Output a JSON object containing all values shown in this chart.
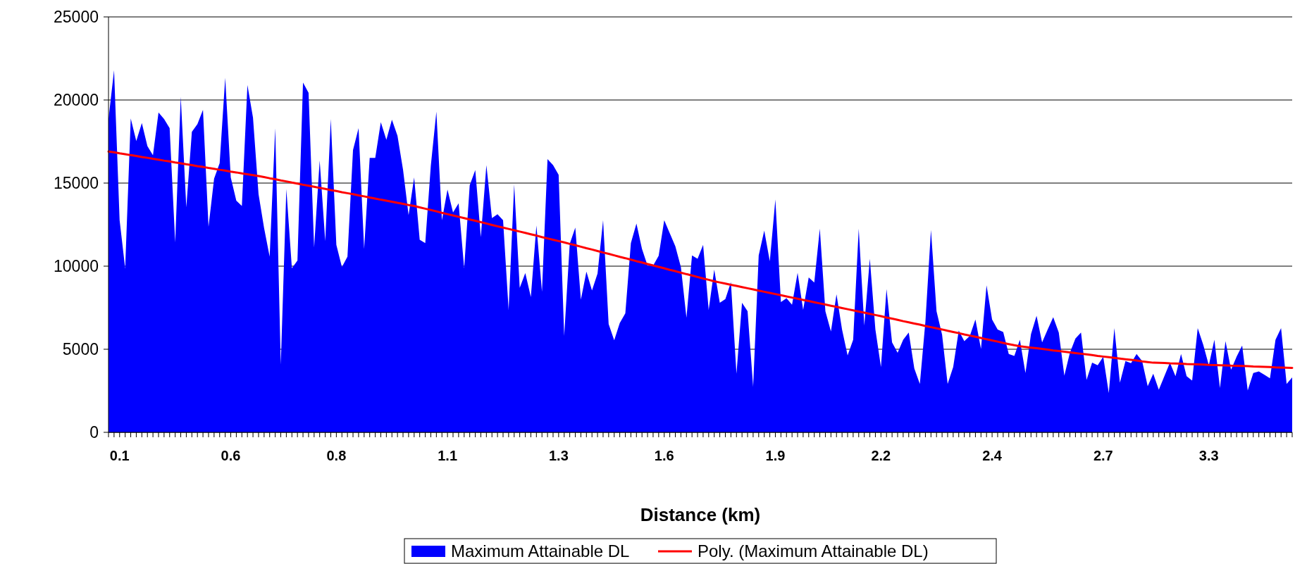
{
  "chart_data": {
    "type": "area",
    "xlabel": "Distance (km)",
    "categories": [
      null,
      null,
      "0.1",
      null,
      null,
      null,
      null,
      null,
      null,
      null,
      null,
      null,
      null,
      null,
      null,
      null,
      null,
      null,
      null,
      null,
      null,
      null,
      "0.6",
      null,
      null,
      null,
      null,
      null,
      null,
      null,
      null,
      null,
      null,
      null,
      null,
      null,
      null,
      null,
      null,
      null,
      null,
      "0.8",
      null,
      null,
      null,
      null,
      null,
      null,
      null,
      null,
      null,
      null,
      null,
      null,
      null,
      null,
      null,
      null,
      null,
      null,
      null,
      "1.1",
      null,
      null,
      null,
      null,
      null,
      null,
      null,
      null,
      null,
      null,
      null,
      null,
      null,
      null,
      null,
      null,
      null,
      null,
      null,
      "1.3",
      null,
      null,
      null,
      null,
      null,
      null,
      null,
      null,
      null,
      null,
      null,
      null,
      null,
      null,
      null,
      null,
      null,
      null,
      "1.6",
      null,
      null,
      null,
      null,
      null,
      null,
      null,
      null,
      null,
      null,
      null,
      null,
      null,
      null,
      null,
      null,
      null,
      null,
      null,
      "1.9",
      null,
      null,
      null,
      null,
      null,
      null,
      null,
      null,
      null,
      null,
      null,
      null,
      null,
      null,
      null,
      null,
      null,
      null,
      "2.2",
      null,
      null,
      null,
      null,
      null,
      null,
      null,
      null,
      null,
      null,
      null,
      null,
      null,
      null,
      null,
      null,
      null,
      null,
      null,
      "2.4",
      null,
      null,
      null,
      null,
      null,
      null,
      null,
      null,
      null,
      null,
      null,
      null,
      null,
      null,
      null,
      null,
      null,
      null,
      null,
      "2.7",
      null,
      null,
      null,
      null,
      null,
      null,
      null,
      null,
      null,
      null,
      null,
      null,
      null,
      null,
      null,
      null,
      null,
      null,
      "3.3",
      null,
      null,
      null,
      null,
      null,
      null,
      null,
      null,
      null,
      null,
      null,
      null,
      null,
      null,
      null
    ],
    "series": [
      {
        "name": "Maximum Attainable DL",
        "color": "#0000ff",
        "values": [
          18860,
          21790,
          12760,
          9870,
          18890,
          17530,
          18610,
          17220,
          16670,
          19250,
          18860,
          18310,
          11430,
          20190,
          13540,
          18080,
          18550,
          19410,
          12370,
          15260,
          16200,
          21330,
          15340,
          13940,
          13620,
          20900,
          18940,
          14330,
          12290,
          10570,
          18310,
          4080,
          14640,
          9870,
          10340,
          21050,
          20430,
          11120,
          16360,
          11510,
          18860,
          11280,
          9950,
          10570,
          16990,
          18310,
          11040,
          16510,
          16510,
          18670,
          17610,
          18810,
          17850,
          15810,
          13070,
          15340,
          11590,
          11390,
          16050,
          19300,
          12760,
          14610,
          13230,
          13780,
          9870,
          14870,
          15780,
          11750,
          16080,
          12890,
          13120,
          12760,
          7370,
          14920,
          8700,
          9590,
          8150,
          12450,
          8460,
          16440,
          16080,
          15500,
          5800,
          11350,
          12320,
          7990,
          9670,
          8540,
          9560,
          12760,
          6510,
          5540,
          6580,
          7160,
          11390,
          12560,
          11040,
          10030,
          10030,
          10620,
          12760,
          11980,
          11200,
          9950,
          6900,
          10650,
          10450,
          11280,
          7370,
          9790,
          7800,
          8020,
          9040,
          3530,
          7800,
          7290,
          2750,
          10650,
          12140,
          10300,
          14010,
          7840,
          8070,
          7680,
          9600,
          7370,
          9320,
          9010,
          12260,
          7290,
          6070,
          8300,
          6190,
          4630,
          5570,
          12260,
          6430,
          10450,
          6190,
          3930,
          8620,
          5410,
          4790,
          5570,
          6010,
          3850,
          2910,
          6660,
          12180,
          7290,
          5880,
          2910,
          3930,
          6120,
          5490,
          5800,
          6790,
          5020,
          8850,
          6790,
          6190,
          6040,
          4710,
          4600,
          5570,
          3570,
          5910,
          7010,
          5410,
          6190,
          6930,
          6010,
          3410,
          4790,
          5650,
          6010,
          3160,
          4190,
          4040,
          4550,
          2360,
          6270,
          2990,
          4290,
          4160,
          4710,
          4290,
          2780,
          3530,
          2560,
          3380,
          4190,
          3380,
          4710,
          3380,
          3110,
          6270,
          5260,
          4040,
          5570,
          2670,
          5490,
          3770,
          4550,
          5220,
          2520,
          3570,
          3660,
          3460,
          3250,
          5570,
          6270,
          2910,
          3300
        ]
      },
      {
        "name": "Poly. (Maximum Attainable DL)",
        "type": "line",
        "color": "#ff0000",
        "values": [
          16900,
          16850,
          16790,
          16740,
          16680,
          16630,
          16570,
          16520,
          16460,
          16410,
          16350,
          16300,
          16240,
          16190,
          16130,
          16080,
          16020,
          15970,
          15910,
          15860,
          15800,
          15750,
          15690,
          15640,
          15580,
          15530,
          15480,
          15420,
          15360,
          15290,
          15230,
          15160,
          15100,
          15030,
          14970,
          14900,
          14840,
          14780,
          14710,
          14650,
          14580,
          14520,
          14450,
          14390,
          14330,
          14260,
          14200,
          14130,
          14070,
          14000,
          13940,
          13880,
          13810,
          13750,
          13680,
          13620,
          13540,
          13460,
          13380,
          13300,
          13210,
          13130,
          13050,
          12970,
          12890,
          12810,
          12730,
          12650,
          12570,
          12480,
          12400,
          12320,
          12240,
          12160,
          12080,
          12000,
          11920,
          11840,
          11750,
          11670,
          11590,
          11510,
          11430,
          11340,
          11260,
          11170,
          11080,
          11000,
          10910,
          10820,
          10740,
          10650,
          10560,
          10480,
          10390,
          10300,
          10220,
          10130,
          10040,
          9960,
          9870,
          9780,
          9700,
          9610,
          9520,
          9440,
          9350,
          9260,
          9180,
          9090,
          9020,
          8950,
          8880,
          8810,
          8740,
          8670,
          8600,
          8530,
          8460,
          8390,
          8320,
          8250,
          8180,
          8110,
          8040,
          7970,
          7900,
          7830,
          7760,
          7690,
          7620,
          7550,
          7480,
          7410,
          7340,
          7270,
          7200,
          7130,
          7060,
          6990,
          6910,
          6840,
          6770,
          6690,
          6620,
          6550,
          6480,
          6400,
          6330,
          6260,
          6190,
          6110,
          6040,
          5970,
          5890,
          5820,
          5750,
          5680,
          5600,
          5530,
          5460,
          5380,
          5310,
          5240,
          5180,
          5140,
          5100,
          5060,
          5020,
          4980,
          4930,
          4890,
          4850,
          4810,
          4770,
          4730,
          4690,
          4650,
          4600,
          4560,
          4520,
          4480,
          4440,
          4400,
          4360,
          4320,
          4270,
          4230,
          4190,
          4180,
          4170,
          4150,
          4140,
          4130,
          4110,
          4100,
          4090,
          4080,
          4060,
          4050,
          4040,
          4030,
          4010,
          4000,
          3990,
          3980,
          3960,
          3950,
          3940,
          3930,
          3910,
          3900,
          3890,
          3880
        ]
      }
    ],
    "ylim": [
      0,
      25000
    ],
    "yticks": [
      0,
      5000,
      10000,
      15000,
      20000,
      25000
    ],
    "grid": "y",
    "legend": "bottom"
  }
}
